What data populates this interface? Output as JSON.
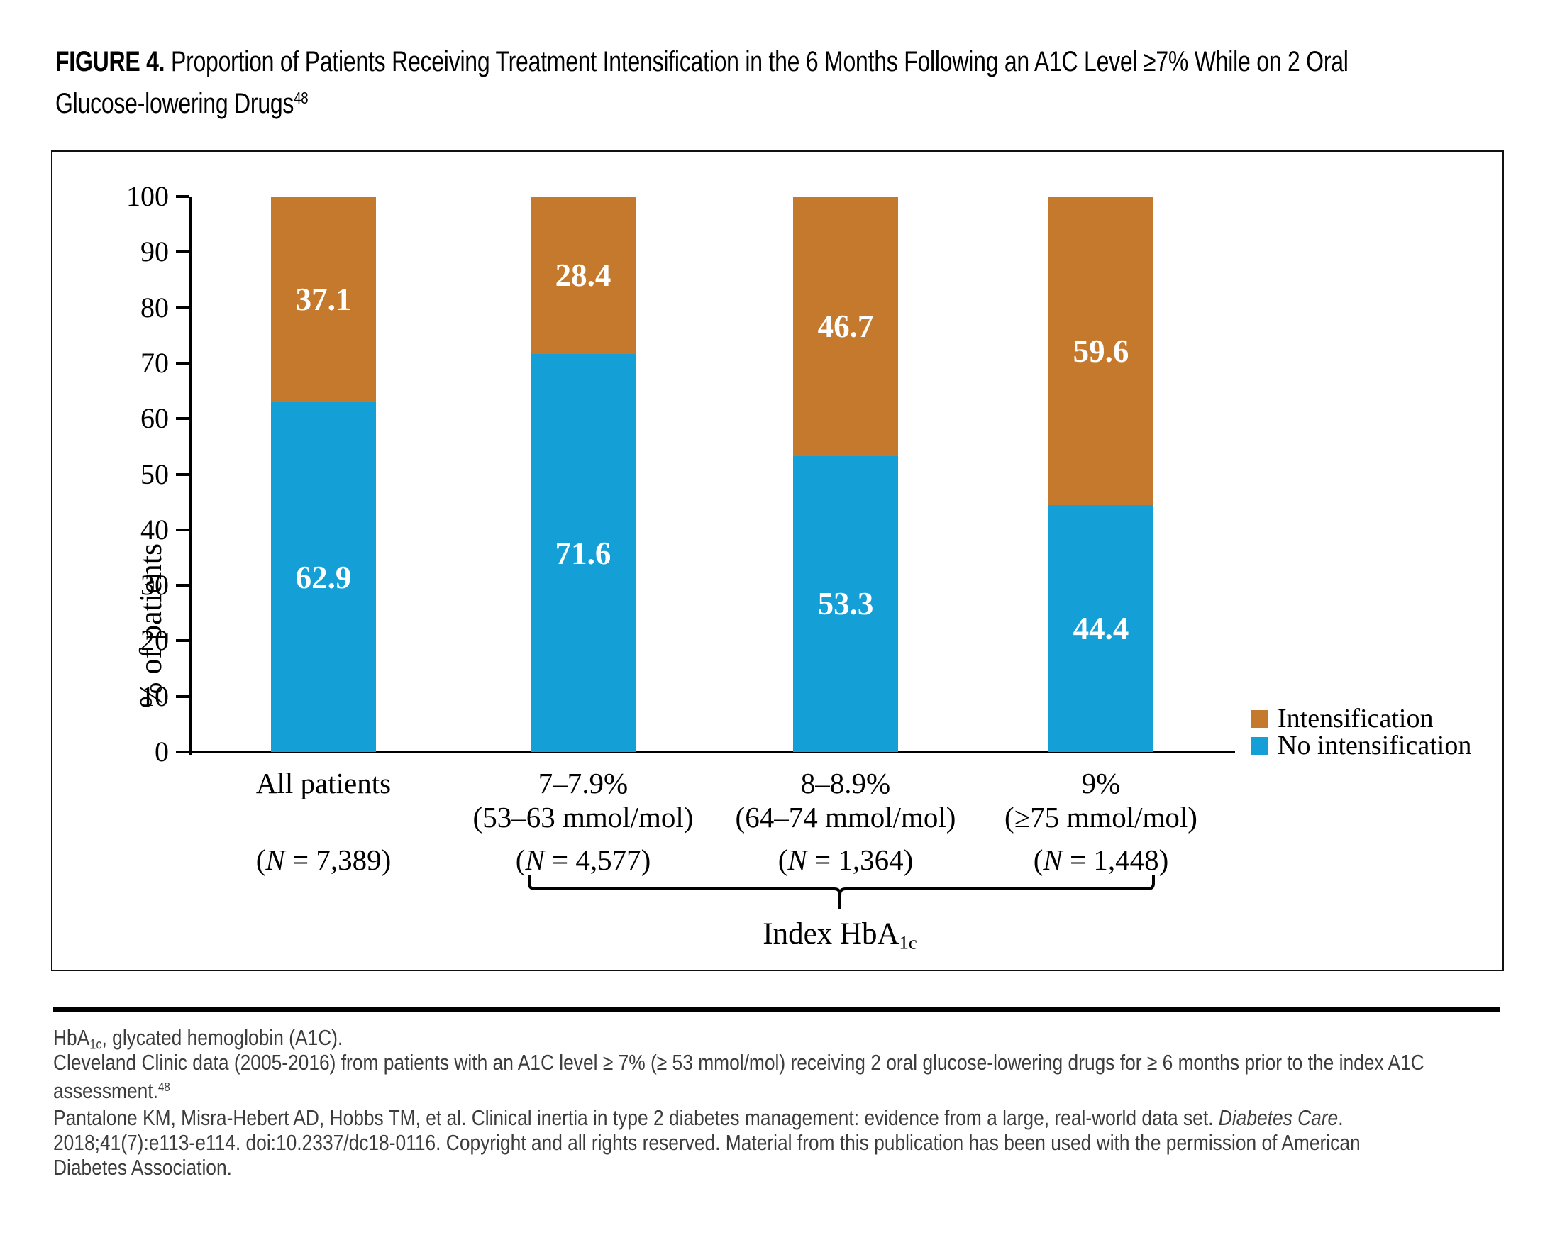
{
  "figure": {
    "label": "FIGURE 4.",
    "title_line1_rest": " Proportion of Patients Receiving Treatment Intensification in the 6 Months Following an A1C Level ≥7% While on 2 Oral",
    "title_line2": "Glucose-lowering Drugs",
    "title_superscript": "48"
  },
  "chart_data": {
    "type": "bar",
    "stacked": true,
    "categories": [
      "All patients",
      "7–7.9%",
      "8–8.9%",
      "9%"
    ],
    "category_sublabels": [
      "",
      "(53–63 mmol/mol)",
      "(64–74 mmol/mol)",
      "(≥75 mmol/mol)"
    ],
    "category_counts": [
      "(N = 7,389)",
      "(N = 4,577)",
      "(N = 1,364)",
      "(N = 1,448)"
    ],
    "series": [
      {
        "name": "No intensification",
        "color": "#149fd6",
        "values": [
          62.9,
          71.6,
          53.3,
          44.4
        ]
      },
      {
        "name": "Intensification",
        "color": "#c5792d",
        "values": [
          37.1,
          28.4,
          46.7,
          59.6
        ]
      }
    ],
    "ylabel": "% of patients",
    "ylim": [
      0,
      100
    ],
    "yticks": [
      0,
      10,
      20,
      30,
      40,
      50,
      60,
      70,
      80,
      90,
      100
    ],
    "grid": false,
    "legend_position": "right-bottom",
    "legend": [
      {
        "label": "Intensification",
        "color": "#c5792d"
      },
      {
        "label": "No intensification",
        "color": "#149fd6"
      }
    ],
    "group_annotation": {
      "label_pre": "Index HbA",
      "label_sub": "1c",
      "groups": [
        "7–7.9%",
        "8–8.9%",
        "9%"
      ]
    }
  },
  "footnotes": {
    "line1_pre": "HbA",
    "line1_sub": "1c",
    "line1_post": ", glycated hemoglobin (A1C).",
    "para2_line1": "Cleveland Clinic data (2005-2016) from patients with an A1C level ≥ 7% (≥ 53 mmol/mol) receiving 2 oral glucose-lowering drugs for ≥ 6 months prior to the index A1C",
    "para2_line2_pre": "assessment.",
    "para2_line2_sup": "48",
    "para3_line1_pre": "Pantalone KM, Misra-Hebert AD, Hobbs TM, et al. Clinical inertia in type 2 diabetes management: evidence from a large, real-world data set. ",
    "para3_line1_italic": "Diabetes Care",
    "para3_line1_post": ".",
    "para3_line2": "2018;41(7):e113-e114. doi:10.2337/dc18-0116. Copyright and all rights reserved. Material from this publication has been used with the permission of American",
    "para3_line3": "Diabetes Association."
  }
}
